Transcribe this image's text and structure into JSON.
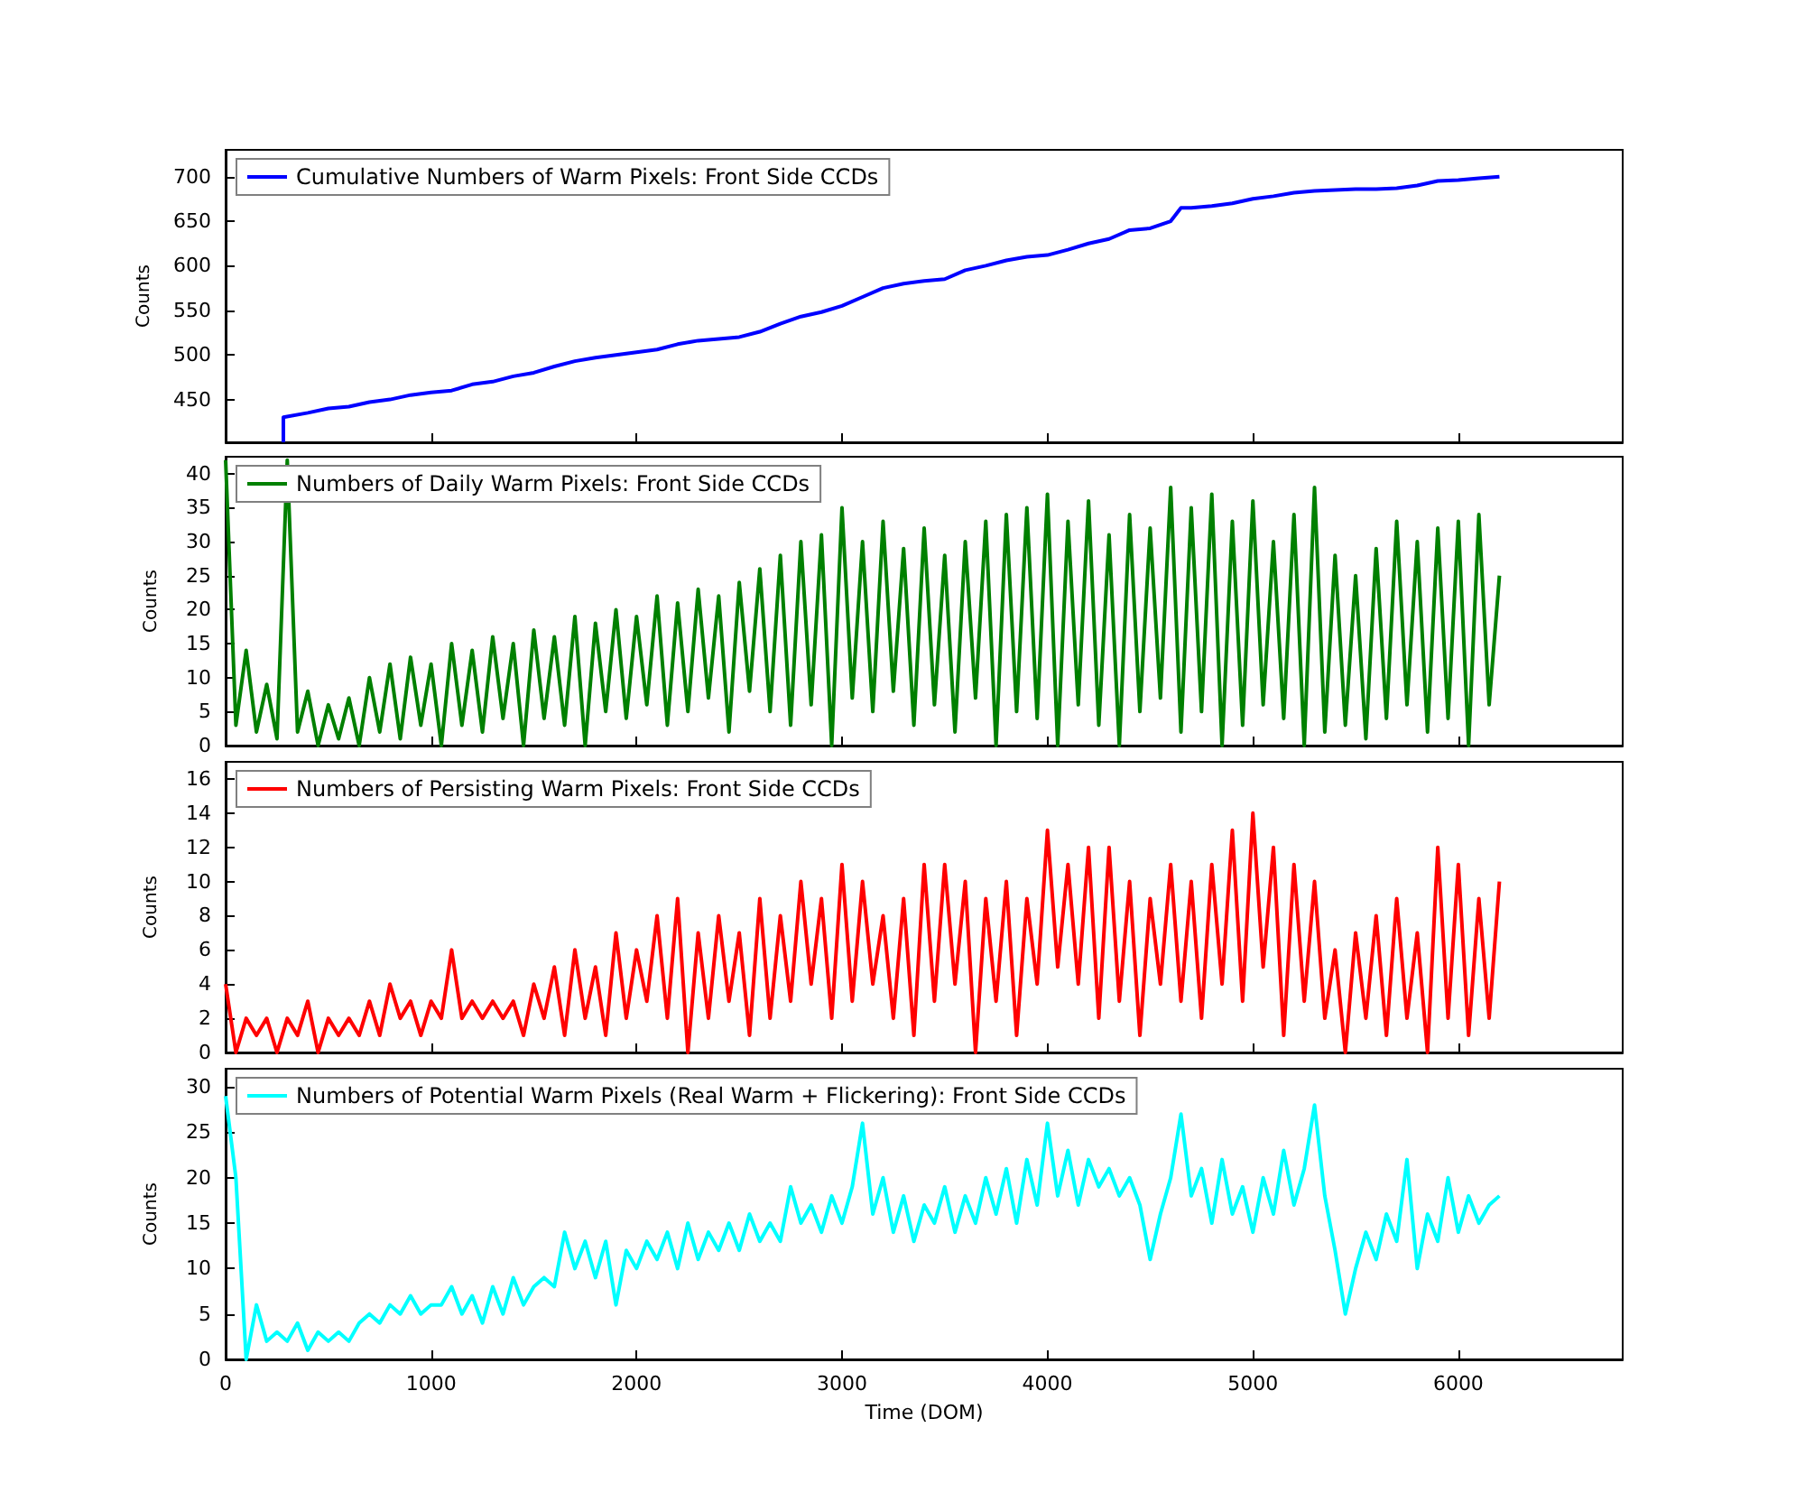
{
  "chart_data": [
    {
      "type": "line",
      "ylabel": "Counts",
      "legend": "top left",
      "tick_labels": "y",
      "xlim": [
        0,
        6800
      ],
      "xticks": [
        0,
        1000,
        2000,
        3000,
        4000,
        5000,
        6000
      ],
      "ylim": [
        402,
        730
      ],
      "yticks": [
        450,
        500,
        550,
        600,
        650,
        700
      ],
      "series": [
        {
          "name": "Cumulative Numbers of Warm Pixels: Front Side CCDs",
          "color": "#0000ff",
          "x": [
            281,
            281,
            400,
            500,
            600,
            700,
            800,
            900,
            1000,
            1100,
            1200,
            1300,
            1400,
            1500,
            1600,
            1700,
            1800,
            1900,
            2000,
            2100,
            2200,
            2300,
            2400,
            2500,
            2600,
            2700,
            2800,
            2900,
            3000,
            3100,
            3200,
            3300,
            3400,
            3500,
            3600,
            3700,
            3800,
            3900,
            4000,
            4100,
            4200,
            4300,
            4400,
            4500,
            4600,
            4650,
            4700,
            4800,
            4900,
            5000,
            5100,
            5200,
            5300,
            5400,
            5500,
            5600,
            5700,
            5800,
            5900,
            6000,
            6100,
            6200
          ],
          "values": [
            402,
            430,
            435,
            440,
            442,
            447,
            450,
            455,
            458,
            460,
            467,
            470,
            476,
            480,
            487,
            493,
            497,
            500,
            503,
            506,
            512,
            516,
            518,
            520,
            526,
            535,
            543,
            548,
            555,
            565,
            575,
            580,
            583,
            585,
            595,
            600,
            606,
            610,
            612,
            618,
            625,
            630,
            640,
            642,
            650,
            665,
            665,
            667,
            670,
            675,
            678,
            682,
            684,
            685,
            686,
            686,
            687,
            690,
            695,
            696,
            698,
            700
          ]
        }
      ]
    },
    {
      "type": "line",
      "ylabel": "Counts",
      "legend": "top left",
      "tick_labels": "y",
      "xlim": [
        0,
        6800
      ],
      "xticks": [
        0,
        1000,
        2000,
        3000,
        4000,
        5000,
        6000
      ],
      "ylim": [
        0,
        42.5
      ],
      "yticks": [
        0,
        5,
        10,
        15,
        20,
        25,
        30,
        35,
        40
      ],
      "x": [
        0,
        50,
        100,
        150,
        200,
        250,
        300,
        350,
        400,
        450,
        500,
        550,
        600,
        650,
        700,
        750,
        800,
        850,
        900,
        950,
        1000,
        1050,
        1100,
        1150,
        1200,
        1250,
        1300,
        1350,
        1400,
        1450,
        1500,
        1550,
        1600,
        1650,
        1700,
        1750,
        1800,
        1850,
        1900,
        1950,
        2000,
        2050,
        2100,
        2150,
        2200,
        2250,
        2300,
        2350,
        2400,
        2450,
        2500,
        2550,
        2600,
        2650,
        2700,
        2750,
        2800,
        2850,
        2900,
        2950,
        3000,
        3050,
        3100,
        3150,
        3200,
        3250,
        3300,
        3350,
        3400,
        3450,
        3500,
        3550,
        3600,
        3650,
        3700,
        3750,
        3800,
        3850,
        3900,
        3950,
        4000,
        4050,
        4100,
        4150,
        4200,
        4250,
        4300,
        4350,
        4400,
        4450,
        4500,
        4550,
        4600,
        4650,
        4700,
        4750,
        4800,
        4850,
        4900,
        4950,
        5000,
        5050,
        5100,
        5150,
        5200,
        5250,
        5300,
        5350,
        5400,
        5450,
        5500,
        5550,
        5600,
        5650,
        5700,
        5750,
        5800,
        5850,
        5900,
        5950,
        6000,
        6050,
        6100,
        6150,
        6200
      ],
      "series": [
        {
          "name": "Numbers of Daily Warm Pixels: Front Side CCDs",
          "color": "#008000",
          "values": [
            42,
            3,
            14,
            2,
            9,
            1,
            42,
            2,
            8,
            0,
            6,
            1,
            7,
            0,
            10,
            2,
            12,
            1,
            13,
            3,
            12,
            0,
            15,
            3,
            14,
            2,
            16,
            4,
            15,
            0,
            17,
            4,
            16,
            3,
            19,
            0,
            18,
            5,
            20,
            4,
            19,
            6,
            22,
            3,
            21,
            5,
            23,
            7,
            22,
            2,
            24,
            8,
            26,
            5,
            28,
            3,
            30,
            6,
            31,
            0,
            35,
            7,
            30,
            5,
            33,
            8,
            29,
            3,
            32,
            6,
            28,
            2,
            30,
            7,
            33,
            0,
            34,
            5,
            35,
            4,
            37,
            0,
            33,
            6,
            36,
            3,
            31,
            0,
            34,
            5,
            32,
            7,
            38,
            2,
            35,
            5,
            37,
            0,
            33,
            3,
            36,
            6,
            30,
            4,
            34,
            0,
            38,
            2,
            28,
            3,
            25,
            1,
            29,
            4,
            33,
            6,
            30,
            2,
            32,
            4,
            33,
            0,
            34,
            6,
            25
          ]
        }
      ]
    },
    {
      "type": "line",
      "ylabel": "Counts",
      "legend": "top left",
      "tick_labels": "y",
      "xlim": [
        0,
        6800
      ],
      "xticks": [
        0,
        1000,
        2000,
        3000,
        4000,
        5000,
        6000
      ],
      "ylim": [
        0,
        17
      ],
      "yticks": [
        0,
        2,
        4,
        6,
        8,
        10,
        12,
        14,
        16
      ],
      "x": [
        0,
        50,
        100,
        150,
        200,
        250,
        300,
        350,
        400,
        450,
        500,
        550,
        600,
        650,
        700,
        750,
        800,
        850,
        900,
        950,
        1000,
        1050,
        1100,
        1150,
        1200,
        1250,
        1300,
        1350,
        1400,
        1450,
        1500,
        1550,
        1600,
        1650,
        1700,
        1750,
        1800,
        1850,
        1900,
        1950,
        2000,
        2050,
        2100,
        2150,
        2200,
        2250,
        2300,
        2350,
        2400,
        2450,
        2500,
        2550,
        2600,
        2650,
        2700,
        2750,
        2800,
        2850,
        2900,
        2950,
        3000,
        3050,
        3100,
        3150,
        3200,
        3250,
        3300,
        3350,
        3400,
        3450,
        3500,
        3550,
        3600,
        3650,
        3700,
        3750,
        3800,
        3850,
        3900,
        3950,
        4000,
        4050,
        4100,
        4150,
        4200,
        4250,
        4300,
        4350,
        4400,
        4450,
        4500,
        4550,
        4600,
        4650,
        4700,
        4750,
        4800,
        4850,
        4900,
        4950,
        5000,
        5050,
        5100,
        5150,
        5200,
        5250,
        5300,
        5350,
        5400,
        5450,
        5500,
        5550,
        5600,
        5650,
        5700,
        5750,
        5800,
        5850,
        5900,
        5950,
        6000,
        6050,
        6100,
        6150,
        6200
      ],
      "series": [
        {
          "name": "Numbers of Persisting Warm Pixels: Front Side CCDs",
          "color": "#ff0000",
          "values": [
            4,
            0,
            2,
            1,
            2,
            0,
            2,
            1,
            3,
            0,
            2,
            1,
            2,
            1,
            3,
            1,
            4,
            2,
            3,
            1,
            3,
            2,
            6,
            2,
            3,
            2,
            3,
            2,
            3,
            1,
            4,
            2,
            5,
            1,
            6,
            2,
            5,
            1,
            7,
            2,
            6,
            3,
            8,
            2,
            9,
            0,
            7,
            2,
            8,
            3,
            7,
            1,
            9,
            2,
            8,
            3,
            10,
            4,
            9,
            2,
            11,
            3,
            10,
            4,
            8,
            2,
            9,
            1,
            11,
            3,
            11,
            4,
            10,
            0,
            9,
            3,
            10,
            1,
            9,
            4,
            13,
            5,
            11,
            4,
            12,
            2,
            12,
            3,
            10,
            1,
            9,
            4,
            11,
            3,
            10,
            2,
            11,
            4,
            13,
            3,
            14,
            5,
            12,
            1,
            11,
            3,
            10,
            2,
            6,
            0,
            7,
            2,
            8,
            1,
            9,
            2,
            7,
            0,
            12,
            2,
            11,
            1,
            9,
            2,
            10
          ]
        }
      ]
    },
    {
      "type": "line",
      "ylabel": "Counts",
      "xlabel": "Time (DOM)",
      "legend": "top left",
      "xlim": [
        0,
        6800
      ],
      "xticks": [
        0,
        1000,
        2000,
        3000,
        4000,
        5000,
        6000
      ],
      "ylim": [
        0,
        32
      ],
      "yticks": [
        0,
        5,
        10,
        15,
        20,
        25,
        30
      ],
      "x": [
        0,
        50,
        100,
        150,
        200,
        250,
        300,
        350,
        400,
        450,
        500,
        550,
        600,
        650,
        700,
        750,
        800,
        850,
        900,
        950,
        1000,
        1050,
        1100,
        1150,
        1200,
        1250,
        1300,
        1350,
        1400,
        1450,
        1500,
        1550,
        1600,
        1650,
        1700,
        1750,
        1800,
        1850,
        1900,
        1950,
        2000,
        2050,
        2100,
        2150,
        2200,
        2250,
        2300,
        2350,
        2400,
        2450,
        2500,
        2550,
        2600,
        2650,
        2700,
        2750,
        2800,
        2850,
        2900,
        2950,
        3000,
        3050,
        3100,
        3150,
        3200,
        3250,
        3300,
        3350,
        3400,
        3450,
        3500,
        3550,
        3600,
        3650,
        3700,
        3750,
        3800,
        3850,
        3900,
        3950,
        4000,
        4050,
        4100,
        4150,
        4200,
        4250,
        4300,
        4350,
        4400,
        4450,
        4500,
        4550,
        4600,
        4650,
        4700,
        4750,
        4800,
        4850,
        4900,
        4950,
        5000,
        5050,
        5100,
        5150,
        5200,
        5250,
        5300,
        5350,
        5400,
        5450,
        5500,
        5550,
        5600,
        5650,
        5700,
        5750,
        5800,
        5850,
        5900,
        5950,
        6000,
        6050,
        6100,
        6150,
        6200
      ],
      "series": [
        {
          "name": "Numbers of Potential Warm Pixels (Real Warm + Flickering): Front Side CCDs",
          "color": "#00ffff",
          "values": [
            29,
            20,
            0,
            6,
            2,
            3,
            2,
            4,
            1,
            3,
            2,
            3,
            2,
            4,
            5,
            4,
            6,
            5,
            7,
            5,
            6,
            6,
            8,
            5,
            7,
            4,
            8,
            5,
            9,
            6,
            8,
            9,
            8,
            14,
            10,
            13,
            9,
            13,
            6,
            12,
            10,
            13,
            11,
            14,
            10,
            15,
            11,
            14,
            12,
            15,
            12,
            16,
            13,
            15,
            13,
            19,
            15,
            17,
            14,
            18,
            15,
            19,
            26,
            16,
            20,
            14,
            18,
            13,
            17,
            15,
            19,
            14,
            18,
            15,
            20,
            16,
            21,
            15,
            22,
            17,
            26,
            18,
            23,
            17,
            22,
            19,
            21,
            18,
            20,
            17,
            11,
            16,
            20,
            27,
            18,
            21,
            15,
            22,
            16,
            19,
            14,
            20,
            16,
            23,
            17,
            21,
            28,
            18,
            12,
            5,
            10,
            14,
            11,
            16,
            13,
            22,
            10,
            16,
            13,
            20,
            14,
            18,
            15,
            17,
            18
          ]
        }
      ]
    }
  ]
}
